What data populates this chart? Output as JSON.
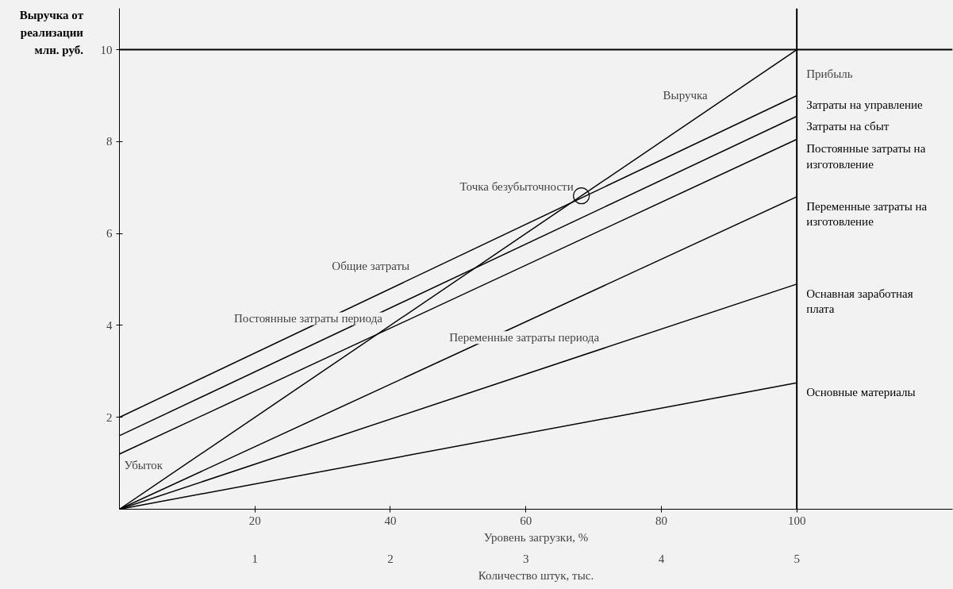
{
  "chart_data": {
    "type": "line",
    "ylabel": "Выручка от реализации млн. руб.",
    "xlabel": "Уровень загрузки, %",
    "x2label": "Количество штук, тыс.",
    "x": [
      0,
      100
    ],
    "series": [
      {
        "color": "#000000",
        "values": [
          0,
          10
        ]
      },
      {
        "name": "Затраты на управление",
        "color": "#000000",
        "values": [
          2.0,
          9.0
        ]
      },
      {
        "name": "Затраты на сбыт",
        "color": "#000000",
        "values": [
          1.6,
          8.55
        ]
      },
      {
        "name": "Постоянные затраты на изготовление",
        "color": "#000000",
        "values": [
          1.2,
          8.05
        ]
      },
      {
        "name": "Переменные затраты на изготовление",
        "color": "#000000",
        "values": [
          0,
          6.8
        ]
      },
      {
        "name": "Оснавная заработная плата",
        "color": "#000000",
        "values": [
          0,
          4.9
        ]
      },
      {
        "name": "Основные материалы",
        "color": "#000000",
        "values": [
          0,
          2.75
        ]
      },
      {
        "type": "scatter",
        "marker": "circle",
        "color": "#000000",
        "x": [
          68.2
        ],
        "values": [
          6.82
        ]
      }
    ],
    "xlim": [
      0,
      123
    ],
    "ylim": [
      0,
      10.9
    ],
    "xticks": [
      20,
      40,
      60,
      80,
      100
    ],
    "yticks": [
      2,
      4,
      6,
      8,
      10
    ],
    "x2lim": [
      0,
      6.15
    ],
    "x2ticks": [
      1,
      2,
      3,
      4,
      5
    ],
    "ref_lines": [
      {
        "axis": "y",
        "value": 10
      },
      {
        "axis": "x",
        "value": 100
      }
    ],
    "annotations": [
      {
        "text": "Выручка",
        "x": 88,
        "y": 8.8
      },
      {
        "text": "Прибыль",
        "x": 100,
        "y": 10
      },
      {
        "text": "Точка безубыточности",
        "x": 68.2,
        "y": 6.82
      },
      {
        "text": "Общие затраты",
        "x": 44,
        "y": 5.08
      },
      {
        "text": "Постоянные затраты периода",
        "x": 40,
        "y": 3.94
      },
      {
        "text": "Переменные затраты периода",
        "x": 72,
        "y": 3.53
      },
      "Убыток"
    ],
    "grid": false
  }
}
